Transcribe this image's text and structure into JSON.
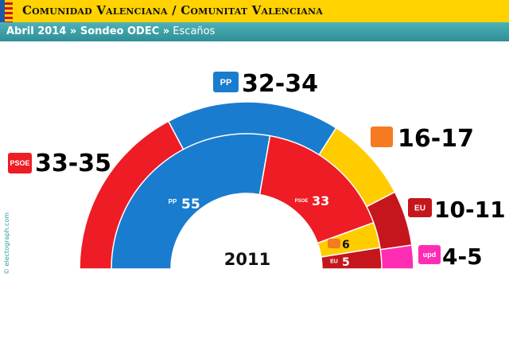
{
  "header": {
    "title": "Comunidad Valenciana / Comunitat Valenciana",
    "subtitle_bold": "Abril 2014 » Sondeo ODEC »",
    "subtitle_rest": " Escaños"
  },
  "credit": "© electograph.com",
  "chart_data": {
    "type": "parliament",
    "center_label": "2011",
    "rings": [
      {
        "name": "Sondeo ODEC Abril 2014",
        "parties": [
          {
            "party": "PSOE",
            "label": "33-35",
            "value": 34,
            "color": "#ee1c25",
            "icon": "psoe-logo"
          },
          {
            "party": "PP",
            "label": "32-34",
            "value": 33,
            "color": "#1a7ccf",
            "icon": "pp-logo"
          },
          {
            "party": "Compromís",
            "label": "16-17",
            "value": 16.5,
            "color": "#ffcc00",
            "icon": "compromis-logo"
          },
          {
            "party": "EU",
            "label": "10-11",
            "value": 10.5,
            "color": "#c4161c",
            "icon": "eu-logo"
          },
          {
            "party": "UPyD",
            "label": "4-5",
            "value": 4.5,
            "color": "#ff2db4",
            "icon": "upyd-logo"
          }
        ]
      },
      {
        "name": "2011",
        "parties": [
          {
            "party": "PP",
            "label": "55",
            "value": 55,
            "color": "#1a7ccf",
            "icon": "pp-logo"
          },
          {
            "party": "PSOE",
            "label": "33",
            "value": 33,
            "color": "#ee1c25",
            "icon": "psoe-logo"
          },
          {
            "party": "Compromís",
            "label": "6",
            "value": 6,
            "color": "#ffcc00",
            "icon": "compromis-logo"
          },
          {
            "party": "EU",
            "label": "5",
            "value": 5,
            "color": "#c4161c",
            "icon": "eu-logo"
          }
        ]
      }
    ]
  }
}
